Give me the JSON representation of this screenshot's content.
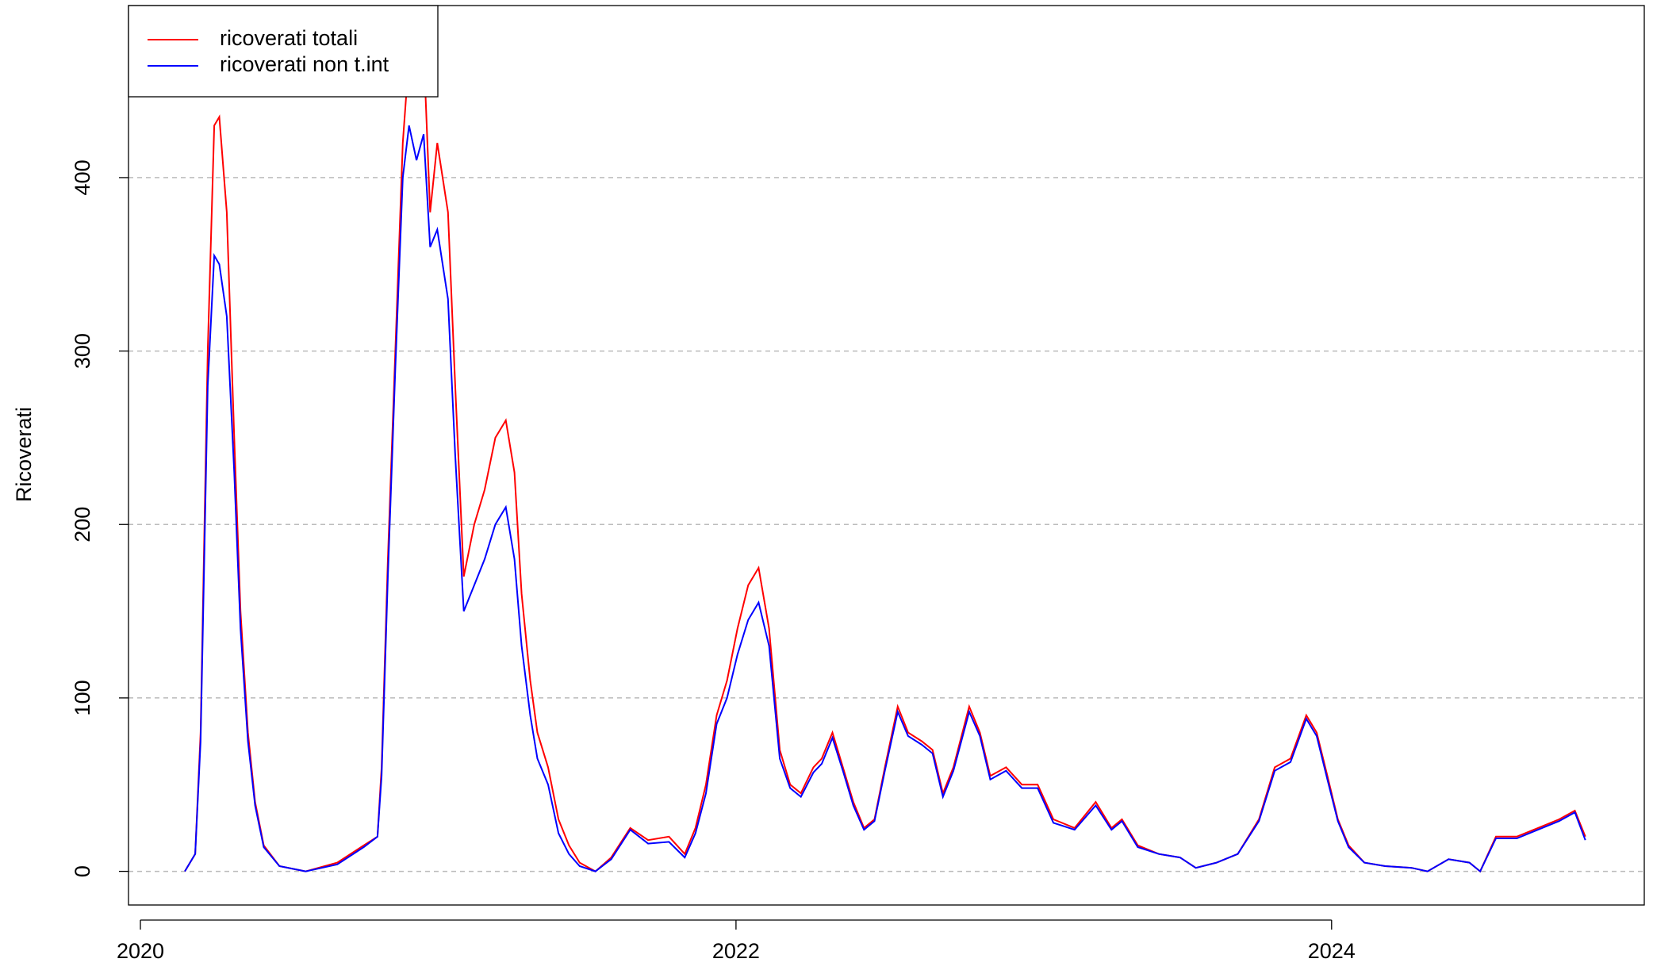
{
  "chart_data": {
    "type": "line",
    "y_label": "Ricoverati",
    "x": [
      2020.149,
      2020.184,
      2020.202,
      2020.226,
      2020.248,
      2020.265,
      2020.29,
      2020.315,
      2020.336,
      2020.361,
      2020.385,
      2020.414,
      2020.467,
      2020.555,
      2020.661,
      2020.75,
      2020.796,
      2020.81,
      2020.831,
      2020.856,
      2020.881,
      2020.902,
      2020.927,
      2020.951,
      2020.973,
      2020.997,
      2021.033,
      2021.057,
      2021.086,
      2021.121,
      2021.156,
      2021.192,
      2021.227,
      2021.256,
      2021.28,
      2021.309,
      2021.333,
      2021.369,
      2021.404,
      2021.439,
      2021.475,
      2021.528,
      2021.581,
      2021.645,
      2021.705,
      2021.775,
      2021.828,
      2021.864,
      2021.899,
      2021.935,
      2021.97,
      2022.005,
      2022.041,
      2022.076,
      2022.111,
      2022.147,
      2022.182,
      2022.218,
      2022.26,
      2022.288,
      2022.324,
      2022.359,
      2022.394,
      2022.43,
      2022.465,
      2022.5,
      2022.543,
      2022.578,
      2022.624,
      2022.66,
      2022.695,
      2022.73,
      2022.783,
      2022.819,
      2022.854,
      2022.907,
      2022.96,
      2023.013,
      2023.066,
      2023.137,
      2023.208,
      2023.261,
      2023.296,
      2023.349,
      2023.42,
      2023.491,
      2023.544,
      2023.614,
      2023.685,
      2023.756,
      2023.809,
      2023.862,
      2023.915,
      2023.95,
      2023.986,
      2024.021,
      2024.057,
      2024.11,
      2024.18,
      2024.269,
      2024.322,
      2024.393,
      2024.463,
      2024.499,
      2024.552,
      2024.622,
      2024.693,
      2024.764,
      2024.817,
      2024.852
    ],
    "series": [
      {
        "name": "ricoverati totali",
        "color": "#ff0000",
        "values": [
          0,
          10,
          80,
          300,
          430,
          435,
          380,
          250,
          150,
          80,
          40,
          15,
          3,
          0,
          5,
          15,
          20,
          60,
          180,
          300,
          420,
          470,
          460,
          475,
          380,
          420,
          380,
          280,
          170,
          200,
          220,
          250,
          260,
          230,
          160,
          110,
          80,
          60,
          30,
          15,
          5,
          0,
          8,
          25,
          18,
          20,
          10,
          25,
          50,
          90,
          110,
          140,
          165,
          175,
          140,
          70,
          50,
          45,
          60,
          65,
          80,
          60,
          40,
          25,
          30,
          60,
          95,
          80,
          75,
          70,
          45,
          60,
          95,
          80,
          55,
          60,
          50,
          50,
          30,
          25,
          40,
          25,
          30,
          15,
          10,
          8,
          2,
          5,
          10,
          30,
          60,
          65,
          90,
          80,
          55,
          30,
          15,
          5,
          3,
          2,
          0,
          7,
          5,
          0,
          20,
          20,
          25,
          30,
          35,
          20
        ]
      },
      {
        "name": "ricoverati non t.int",
        "color": "#0000ff",
        "values": [
          0,
          10,
          75,
          280,
          355,
          350,
          320,
          230,
          140,
          75,
          38,
          14,
          3,
          0,
          4,
          14,
          20,
          55,
          170,
          290,
          400,
          430,
          410,
          425,
          360,
          370,
          330,
          240,
          150,
          165,
          180,
          200,
          210,
          180,
          130,
          90,
          65,
          50,
          22,
          10,
          3,
          0,
          7,
          24,
          16,
          17,
          8,
          22,
          45,
          85,
          100,
          125,
          145,
          155,
          130,
          65,
          48,
          43,
          57,
          62,
          77,
          58,
          38,
          24,
          29,
          58,
          92,
          78,
          73,
          68,
          43,
          58,
          92,
          78,
          53,
          58,
          48,
          48,
          28,
          24,
          38,
          24,
          29,
          14,
          10,
          8,
          2,
          5,
          10,
          29,
          58,
          63,
          88,
          78,
          53,
          29,
          14,
          5,
          3,
          2,
          0,
          7,
          5,
          0,
          19,
          19,
          24,
          29,
          34,
          18
        ]
      }
    ],
    "xlim": [
      2019.96,
      2025.05
    ],
    "xticks": [
      2020,
      2022,
      2024
    ],
    "ylim": [
      -19.4,
      499.2
    ],
    "yticks": [
      0,
      100,
      200,
      300,
      400
    ],
    "grid": true,
    "legend": "top-left"
  }
}
